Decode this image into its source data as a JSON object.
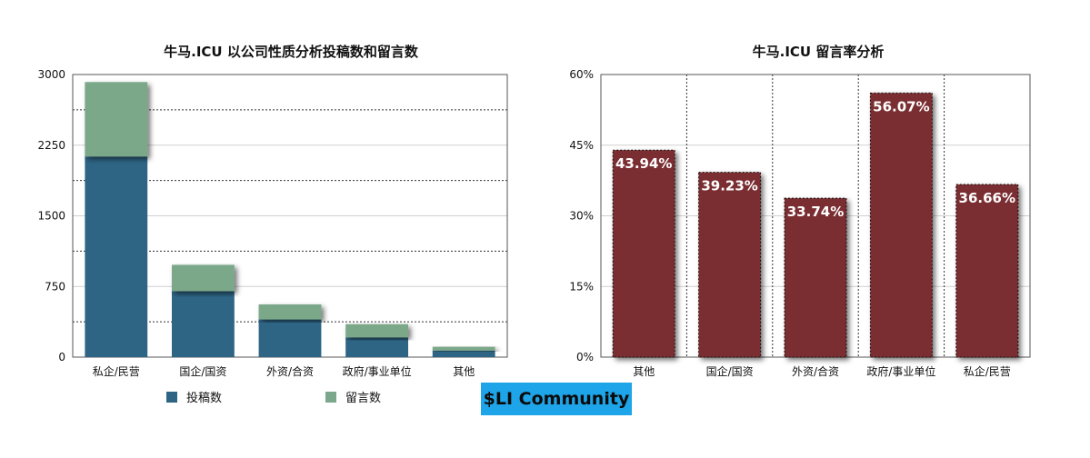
{
  "chart_data": [
    {
      "type": "bar",
      "stacked": true,
      "title": "牛马.ICU 以公司性质分析投稿数和留言数",
      "categories": [
        "私企/民营",
        "国企/国资",
        "外资/合资",
        "政府/事业单位",
        "其他"
      ],
      "series": [
        {
          "name": "投稿数",
          "values": [
            2130,
            700,
            400,
            210,
            70
          ],
          "color": "#2e6585"
        },
        {
          "name": "留言数",
          "values": [
            790,
            280,
            160,
            140,
            40
          ],
          "color": "#7ba88a"
        }
      ],
      "ylim": [
        0,
        3000
      ],
      "yticks": [
        0,
        750,
        1500,
        2250,
        3000
      ],
      "ytick_labels": [
        "0",
        "750",
        "1500",
        "2250",
        "3000"
      ],
      "grid": true,
      "legend": "bottom"
    },
    {
      "type": "bar",
      "title": "牛马.ICU 留言率分析",
      "categories": [
        "其他",
        "国企/国资",
        "外资/合资",
        "政府/事业单位",
        "私企/民营"
      ],
      "values": [
        43.94,
        39.23,
        33.74,
        56.07,
        36.66
      ],
      "data_labels": [
        "43.94%",
        "39.23%",
        "33.74%",
        "56.07%",
        "36.66%"
      ],
      "color": "#7a2e32",
      "ylim": [
        0,
        60
      ],
      "yticks": [
        0,
        15,
        30,
        45,
        60
      ],
      "ytick_labels": [
        "0%",
        "15%",
        "30%",
        "45%",
        "60%"
      ],
      "grid": true
    }
  ],
  "watermark": {
    "text": "$LI Community",
    "color": "#1ea4e8"
  }
}
